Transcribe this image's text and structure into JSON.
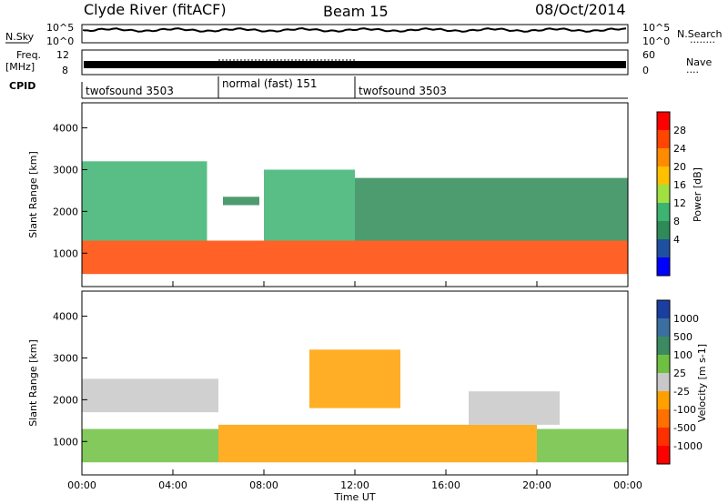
{
  "header": {
    "title": "Clyde River (fitACF)",
    "beam": "Beam 15",
    "date": "08/Oct/2014"
  },
  "noise_panel": {
    "left_label": "N.Sky",
    "right_label": "N.Search",
    "right_legend_dots": "........",
    "left_ticks": [
      "10^5",
      "10^0"
    ],
    "right_ticks": [
      "10^5",
      "10^0"
    ]
  },
  "freq_panel": {
    "left_label_top": "Freq.",
    "left_label_unit": "[MHz]",
    "left_ticks": [
      "12",
      "8"
    ],
    "right_label": "Nave",
    "right_legend_dots": "....",
    "right_ticks": [
      "60",
      "0"
    ]
  },
  "cpid_panel": {
    "label": "CPID",
    "segments": [
      {
        "name": "twofsound 3503",
        "start_hour": 0,
        "end_hour": 6
      },
      {
        "name": "normal (fast) 151",
        "start_hour": 6,
        "end_hour": 12
      },
      {
        "name": "twofsound 3503",
        "start_hour": 12,
        "end_hour": 24
      }
    ]
  },
  "power_colorbar": {
    "label": "Power [dB]",
    "ticks": [
      "28",
      "24",
      "20",
      "16",
      "12",
      "8",
      "4"
    ],
    "colors": [
      "#ff0000",
      "#ff4500",
      "#ff8c00",
      "#ffc000",
      "#a0e040",
      "#3cb371",
      "#2e8b57",
      "#1e4fa0",
      "#0000ff"
    ]
  },
  "velocity_colorbar": {
    "label": "Velocity [m s-1]",
    "ticks": [
      "1000",
      "500",
      "100",
      "25",
      "-25",
      "-100",
      "-500",
      "-1000"
    ],
    "colors": [
      "#1a3fa0",
      "#3a6fa0",
      "#3c8a60",
      "#6fc040",
      "#c8c8c8",
      "#ffa000",
      "#ff7000",
      "#ff3000",
      "#ff0000"
    ]
  },
  "chart_data": [
    {
      "type": "heatmap",
      "title": "Power",
      "xlabel": "Time UT",
      "ylabel": "Slant Range [km]",
      "xlim_hours": [
        0,
        24
      ],
      "x_tick_labels": [
        "00:00",
        "04:00",
        "08:00",
        "12:00",
        "16:00",
        "20:00",
        "00:00"
      ],
      "ylim": [
        200,
        4600
      ],
      "y_tick_labels": [
        "1000",
        "2000",
        "3000",
        "4000"
      ],
      "colorbar": "Power [dB]",
      "clim": [
        0,
        32
      ],
      "bands": [
        {
          "from_hour": 0,
          "to_hour": 24,
          "range_low_km": 500,
          "range_high_km": 1300,
          "value_db": 26
        },
        {
          "from_hour": 0,
          "to_hour": 5.5,
          "range_low_km": 1300,
          "range_high_km": 3200,
          "value_db": 12
        },
        {
          "from_hour": 6.2,
          "to_hour": 7.8,
          "range_low_km": 2150,
          "range_high_km": 2350,
          "value_db": 10
        },
        {
          "from_hour": 8,
          "to_hour": 12,
          "range_low_km": 1300,
          "range_high_km": 3000,
          "value_db": 14
        },
        {
          "from_hour": 12,
          "to_hour": 24,
          "range_low_km": 1300,
          "range_high_km": 2800,
          "value_db": 9
        }
      ]
    },
    {
      "type": "heatmap",
      "title": "Velocity",
      "xlabel": "Time UT",
      "ylabel": "Slant Range [km]",
      "xlim_hours": [
        0,
        24
      ],
      "x_tick_labels": [
        "00:00",
        "04:00",
        "08:00",
        "12:00",
        "16:00",
        "20:00",
        "00:00"
      ],
      "ylim": [
        200,
        4600
      ],
      "y_tick_labels": [
        "1000",
        "2000",
        "3000",
        "4000"
      ],
      "colorbar": "Velocity [m s-1]",
      "clim": [
        -1000,
        1000
      ],
      "bands": [
        {
          "from_hour": 0,
          "to_hour": 6,
          "range_low_km": 500,
          "range_high_km": 1300,
          "value_ms": 150
        },
        {
          "from_hour": 0,
          "to_hour": 6,
          "range_low_km": 1700,
          "range_high_km": 2500,
          "value_ms": 0
        },
        {
          "from_hour": 6,
          "to_hour": 20,
          "range_low_km": 500,
          "range_high_km": 1400,
          "value_ms": -150
        },
        {
          "from_hour": 10,
          "to_hour": 14,
          "range_low_km": 1800,
          "range_high_km": 3200,
          "value_ms": -200
        },
        {
          "from_hour": 17,
          "to_hour": 21,
          "range_low_km": 1400,
          "range_high_km": 2200,
          "value_ms": 0
        },
        {
          "from_hour": 20,
          "to_hour": 24,
          "range_low_km": 500,
          "range_high_km": 1300,
          "value_ms": 150
        }
      ]
    }
  ]
}
